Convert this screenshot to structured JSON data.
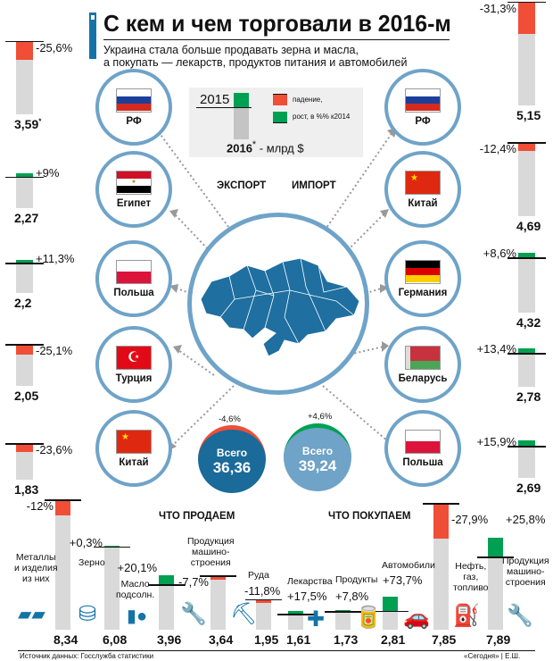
{
  "header": {
    "title": "С кем и чем торговали в 2016-м",
    "subtitle_line1": "Украина стала больше продавать зерна и масла,",
    "subtitle_line2": "а покупать — лекарств, продуктов питания и автомобилей"
  },
  "legend": {
    "year_2015": "2015",
    "year_2016": "2016",
    "asterisk": "*",
    "unit": " - млрд $",
    "decline": "падение,",
    "growth": "рост, в %% к2014"
  },
  "sections": {
    "export": "ЭКСПОРТ",
    "import": "ИМПОРТ",
    "sell": "ЧТО ПРОДАЕМ",
    "buy": "ЧТО ПОКУПАЕМ"
  },
  "totals": {
    "export": {
      "label": "Всего",
      "value": "36,36",
      "pct": "-4,6%"
    },
    "import": {
      "label": "Всего",
      "value": "39,24",
      "pct": "+4,6%"
    }
  },
  "footer": {
    "source": "Источник данных: Госслужба статистики",
    "credit": "«Сегодня» | Е.Ш."
  },
  "colors": {
    "decline": "#f04e37",
    "growth": "#00a052",
    "bar": "#d9d9d9",
    "accent": "#1474a8",
    "circle": "#6fa3c8"
  },
  "chart_data": [
    {
      "type": "bar",
      "title": "Экспорт по странам",
      "unit": "млрд $",
      "categories": [
        "РФ",
        "Египет",
        "Польша",
        "Турция",
        "Китай"
      ],
      "values": [
        3.59,
        2.27,
        2.2,
        2.05,
        1.83
      ],
      "value_labels": [
        "3,59",
        "2,27",
        "2,2",
        "2,05",
        "1,83"
      ],
      "change_pct": [
        -25.6,
        9,
        11.3,
        -25.1,
        -23.6
      ],
      "change_labels": [
        "-25,6%",
        "+9%",
        "+11,3%",
        "-25,1%",
        "-23,6%"
      ],
      "value_note": "*"
    },
    {
      "type": "bar",
      "title": "Импорт по странам",
      "unit": "млрд $",
      "categories": [
        "РФ",
        "Китай",
        "Германия",
        "Беларусь",
        "Польша"
      ],
      "values": [
        5.15,
        4.69,
        4.32,
        2.78,
        2.69
      ],
      "value_labels": [
        "5,15",
        "4,69",
        "4,32",
        "2,78",
        "2,69"
      ],
      "change_pct": [
        -31.3,
        -12.4,
        8.6,
        13.4,
        15.9
      ],
      "change_labels": [
        "-31,3%",
        "-12,4%",
        "+8,6%",
        "+13,4%",
        "+15,9%"
      ]
    },
    {
      "type": "bar",
      "title": "ЧТО ПРОДАЕМ",
      "unit": "млрд $",
      "categories": [
        "Металлы и изделия из них",
        "Зерно",
        "Масло подсолн.",
        "Продукция машино-строения",
        "Руда"
      ],
      "values": [
        8.34,
        6.08,
        3.96,
        3.64,
        1.95
      ],
      "value_labels": [
        "8,34",
        "6,08",
        "3,96",
        "3,64",
        "1,95"
      ],
      "change_pct": [
        -12,
        0.3,
        20.1,
        -7.7,
        -11.8
      ],
      "change_labels": [
        "-12%",
        "+0,3%",
        "+20,1%",
        "-7,7%",
        "-11,8%"
      ]
    },
    {
      "type": "bar",
      "title": "ЧТО ПОКУПАЕМ",
      "unit": "млрд $",
      "categories": [
        "Лекарства",
        "Продукты",
        "Автомобили",
        "Нефть, газ, топливо",
        "Продукция машино-строения"
      ],
      "values": [
        1.61,
        1.73,
        2.81,
        7.85,
        7.89
      ],
      "value_labels": [
        "1,61",
        "1,73",
        "2,81",
        "7,85",
        "7,89"
      ],
      "change_pct": [
        17.5,
        7.8,
        73.7,
        -27.9,
        25.8
      ],
      "change_labels": [
        "+17,5%",
        "+7,8%",
        "+73,7%",
        "-27,9%",
        "+25,8%"
      ]
    }
  ]
}
